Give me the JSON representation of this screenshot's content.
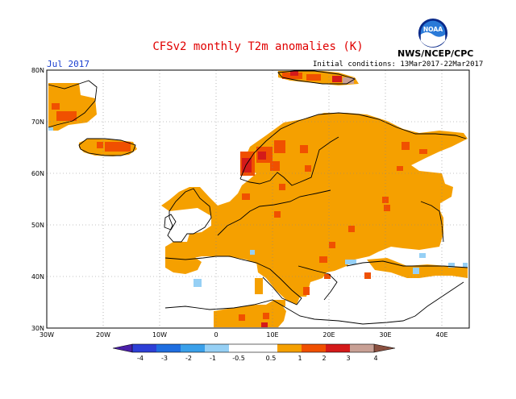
{
  "header": {
    "title": "CFSv2 monthly T2m anomalies (K)",
    "month": "Jul 2017",
    "initial_conditions": "Initial conditions: 13Mar2017-22Mar2017",
    "agency": "NWS/NCEP/CPC",
    "logo_text": "NOAA"
  },
  "axes": {
    "lat_labels": [
      "80N",
      "70N",
      "60N",
      "50N",
      "40N",
      "30N"
    ],
    "lon_labels": [
      "30W",
      "20W",
      "10W",
      "0",
      "10E",
      "20E",
      "30E",
      "40E"
    ]
  },
  "colorbar": {
    "ticks": [
      "-4",
      "-3",
      "-2",
      "-1",
      "-0.5",
      "0.5",
      "1",
      "2",
      "3",
      "4"
    ],
    "colors": [
      "#4a1fa8",
      "#2d3fd6",
      "#1f6ee0",
      "#3aa0ea",
      "#96d0f5",
      "#ffffff",
      "#f5a000",
      "#f05000",
      "#d41a1a",
      "#9a1a1a",
      "#c8a095",
      "#8a5040"
    ]
  },
  "colors": {
    "warm": "#f5a000",
    "hot": "#f05000",
    "hotter": "#d41a1a",
    "cool": "#96d0f5",
    "ocean": "#ffffff"
  }
}
